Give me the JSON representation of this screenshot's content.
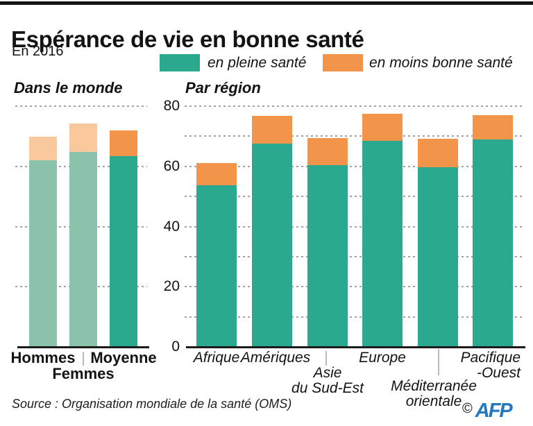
{
  "header": {
    "title": "Espérance de vie en bonne santé",
    "subtitle": "En 2016"
  },
  "legend": [
    {
      "label": "en pleine santé",
      "color_key": "healthy"
    },
    {
      "label": "en moins bonne santé",
      "color_key": "less_healthy"
    }
  ],
  "colors": {
    "healthy": "#2ba98e",
    "less_healthy": "#f2944a",
    "healthy_muted": "#8ac2ac",
    "less_healthy_muted": "#f9c99d",
    "gridline": "#a0a0a0",
    "credit_blue": "#2578bd"
  },
  "source": "Source : Organisation mondiale de la santé (OMS)",
  "credit": {
    "copyright": "©",
    "agency": "AFP"
  },
  "chart_data": [
    {
      "type": "bar",
      "stacked": true,
      "title": "Dans le monde",
      "categories": [
        "Hommes",
        "Femmes",
        "Moyenne"
      ],
      "series": [
        {
          "name": "en pleine santé",
          "values": [
            62.0,
            64.8,
            63.3
          ]
        },
        {
          "name": "en moins bonne santé",
          "values": [
            7.8,
            9.4,
            8.7
          ]
        }
      ],
      "totals": [
        69.8,
        74.2,
        72.0
      ],
      "muted": [
        true,
        true,
        false
      ],
      "ylim": [
        0,
        80
      ],
      "yticks": [
        0,
        20,
        40,
        60,
        80
      ],
      "grid": "dashed, every 20"
    },
    {
      "type": "bar",
      "stacked": true,
      "title": "Par région",
      "categories": [
        "Afrique",
        "Amériques",
        "Asie\ndu Sud-Est",
        "Europe",
        "Méditerranée\norientale",
        "Pacifique\n-Ouest"
      ],
      "series": [
        {
          "name": "en pleine santé",
          "values": [
            53.8,
            67.5,
            60.4,
            68.4,
            59.7,
            68.9
          ]
        },
        {
          "name": "en moins bonne santé",
          "values": [
            7.4,
            9.3,
            9.1,
            9.1,
            9.4,
            8.0
          ]
        }
      ],
      "totals": [
        61.2,
        76.8,
        69.5,
        77.5,
        69.1,
        76.9
      ],
      "muted": [
        false,
        false,
        false,
        false,
        false,
        false
      ],
      "ylim": [
        0,
        80
      ],
      "yticks": [
        0,
        20,
        40,
        60,
        80
      ],
      "grid": "dashed, every 10"
    }
  ]
}
